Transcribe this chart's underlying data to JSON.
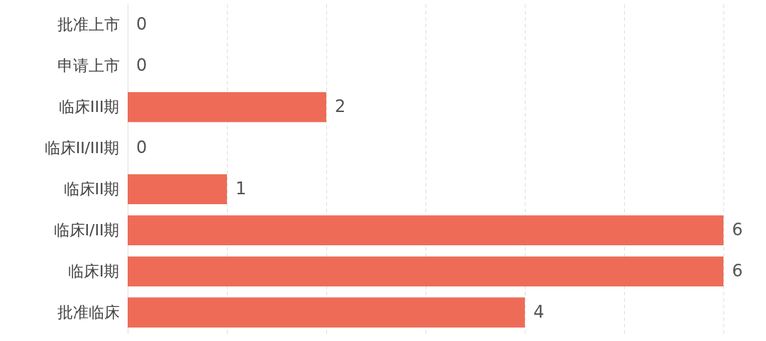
{
  "chart_data": {
    "type": "bar",
    "orientation": "horizontal",
    "categories": [
      "批准上市",
      "申请上市",
      "临床III期",
      "临床II/III期",
      "临床II期",
      "临床I/II期",
      "临床I期",
      "批准临床"
    ],
    "values": [
      0,
      0,
      2,
      0,
      1,
      6,
      6,
      4
    ],
    "color": "#ee6c57",
    "xlim": [
      0,
      6
    ],
    "xticks": [
      {
        "value": 0,
        "label": null
      },
      {
        "value": 1,
        "label": null
      },
      {
        "value": 2,
        "label": null
      },
      {
        "value": 3,
        "label": null
      },
      {
        "value": 4,
        "label": null
      },
      {
        "value": 5,
        "label": null
      },
      {
        "value": 6,
        "label": null
      }
    ],
    "grid": "x",
    "data_labels": true
  }
}
